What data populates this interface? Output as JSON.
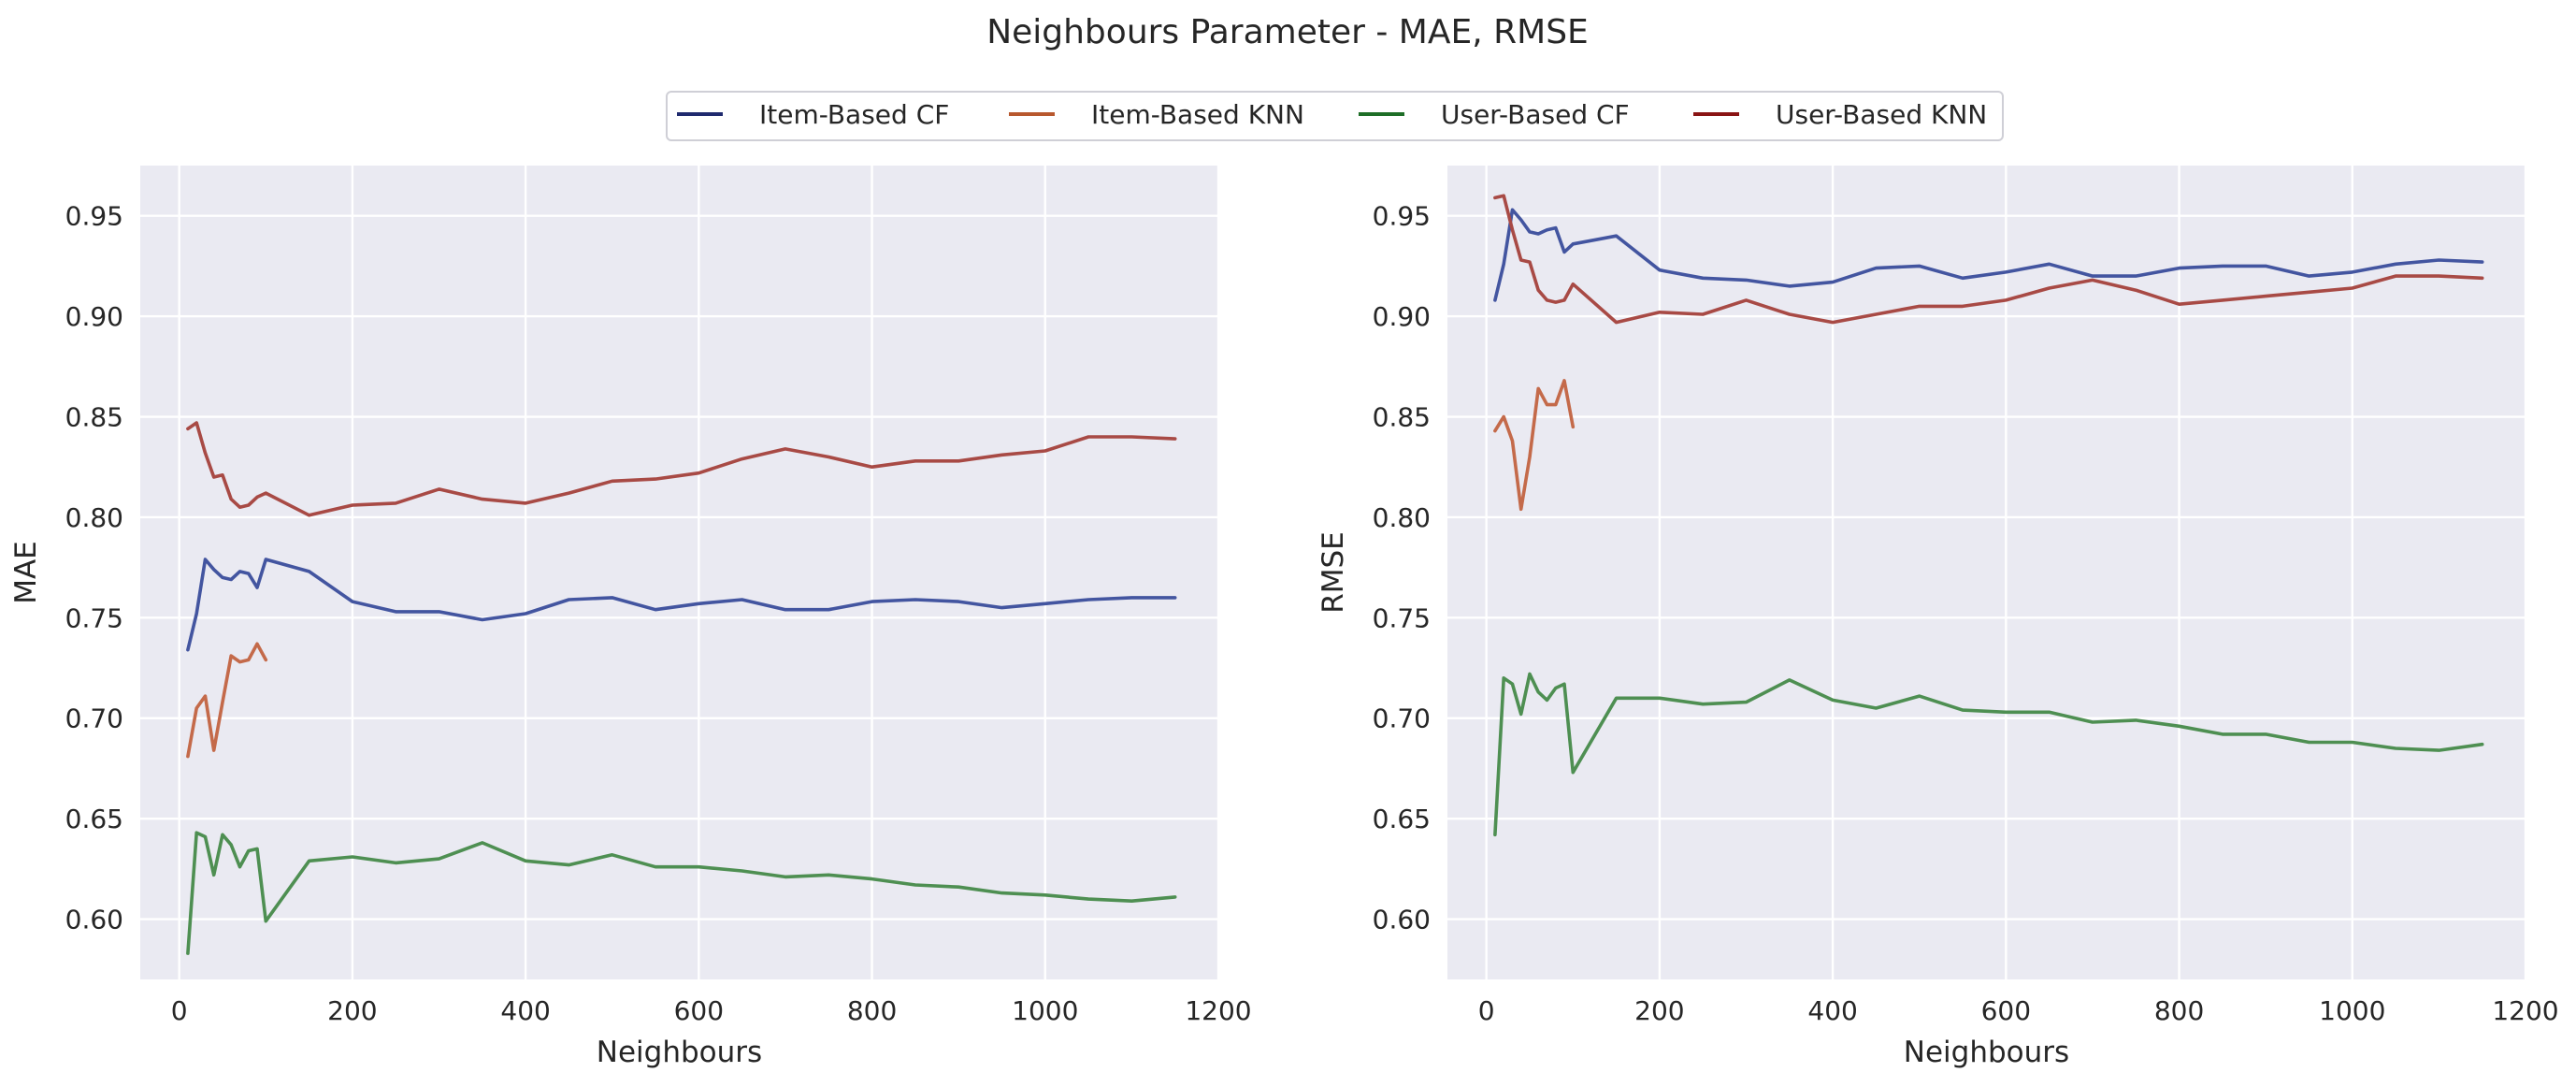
{
  "figure": {
    "title": "Neighbours Parameter - MAE, RMSE",
    "background": "#ffffff",
    "axes_background": "#eaeaf2",
    "grid_color": "#ffffff"
  },
  "legend": {
    "placement": "top-center",
    "entries": [
      {
        "name": "Item-Based CF",
        "color": "#1f2a6e"
      },
      {
        "name": "Item-Based KNN",
        "color": "#b8582e"
      },
      {
        "name": "User-Based CF",
        "color": "#1e6e27"
      },
      {
        "name": "User-Based KNN",
        "color": "#8a1414"
      }
    ]
  },
  "chart_data": [
    {
      "type": "line",
      "title": "",
      "xlabel": "Neighbours",
      "ylabel": "MAE",
      "xlim": [
        -45,
        1200
      ],
      "ylim": [
        0.57,
        0.975
      ],
      "xticks": [
        0,
        200,
        400,
        600,
        800,
        1000,
        1200
      ],
      "yticks": [
        0.6,
        0.65,
        0.7,
        0.75,
        0.8,
        0.85,
        0.9,
        0.95
      ],
      "ytick_labels": [
        "0.60",
        "0.65",
        "0.70",
        "0.75",
        "0.80",
        "0.85",
        "0.90",
        "0.95"
      ],
      "grid": true,
      "series": [
        {
          "name": "Item-Based CF",
          "color": "#4355a0",
          "x": [
            10,
            20,
            30,
            40,
            50,
            60,
            70,
            80,
            90,
            100,
            150,
            200,
            250,
            300,
            350,
            400,
            450,
            500,
            550,
            600,
            650,
            700,
            750,
            800,
            850,
            900,
            950,
            1000,
            1050,
            1100,
            1150
          ],
          "y": [
            0.734,
            0.752,
            0.779,
            0.774,
            0.77,
            0.769,
            0.773,
            0.772,
            0.765,
            0.779,
            0.773,
            0.758,
            0.753,
            0.753,
            0.749,
            0.752,
            0.759,
            0.76,
            0.754,
            0.757,
            0.759,
            0.754,
            0.754,
            0.758,
            0.759,
            0.758,
            0.755,
            0.757,
            0.759,
            0.76,
            0.76
          ]
        },
        {
          "name": "Item-Based KNN",
          "color": "#c46a4a",
          "x": [
            10,
            20,
            30,
            40,
            50,
            60,
            70,
            80,
            90,
            100
          ],
          "y": [
            0.681,
            0.705,
            0.711,
            0.684,
            0.708,
            0.731,
            0.728,
            0.729,
            0.737,
            0.729
          ]
        },
        {
          "name": "User-Based CF",
          "color": "#4e8f52",
          "x": [
            10,
            20,
            30,
            40,
            50,
            60,
            70,
            80,
            90,
            100,
            150,
            200,
            250,
            300,
            350,
            400,
            450,
            500,
            550,
            600,
            650,
            700,
            750,
            800,
            850,
            900,
            950,
            1000,
            1050,
            1100,
            1150
          ],
          "y": [
            0.583,
            0.643,
            0.641,
            0.622,
            0.642,
            0.637,
            0.626,
            0.634,
            0.635,
            0.599,
            0.629,
            0.631,
            0.628,
            0.63,
            0.638,
            0.629,
            0.627,
            0.632,
            0.626,
            0.626,
            0.624,
            0.621,
            0.622,
            0.62,
            0.617,
            0.616,
            0.613,
            0.612,
            0.61,
            0.609,
            0.611
          ]
        },
        {
          "name": "User-Based KNN",
          "color": "#a84a45",
          "x": [
            10,
            20,
            30,
            40,
            50,
            60,
            70,
            80,
            90,
            100,
            150,
            200,
            250,
            300,
            350,
            400,
            450,
            500,
            550,
            600,
            650,
            700,
            750,
            800,
            850,
            900,
            950,
            1000,
            1050,
            1100,
            1150
          ],
          "y": [
            0.844,
            0.847,
            0.832,
            0.82,
            0.821,
            0.809,
            0.805,
            0.806,
            0.81,
            0.812,
            0.801,
            0.806,
            0.807,
            0.814,
            0.809,
            0.807,
            0.812,
            0.818,
            0.819,
            0.822,
            0.829,
            0.834,
            0.83,
            0.825,
            0.828,
            0.828,
            0.831,
            0.833,
            0.84,
            0.84,
            0.839
          ]
        }
      ]
    },
    {
      "type": "line",
      "title": "",
      "xlabel": "Neighbours",
      "ylabel": "RMSE",
      "xlim": [
        -45,
        1200
      ],
      "ylim": [
        0.57,
        0.975
      ],
      "xticks": [
        0,
        200,
        400,
        600,
        800,
        1000,
        1200
      ],
      "yticks": [
        0.6,
        0.65,
        0.7,
        0.75,
        0.8,
        0.85,
        0.9,
        0.95
      ],
      "ytick_labels": [
        "0.60",
        "0.65",
        "0.70",
        "0.75",
        "0.80",
        "0.85",
        "0.90",
        "0.95"
      ],
      "grid": true,
      "series": [
        {
          "name": "Item-Based CF",
          "color": "#4355a0",
          "x": [
            10,
            20,
            30,
            40,
            50,
            60,
            70,
            80,
            90,
            100,
            150,
            200,
            250,
            300,
            350,
            400,
            450,
            500,
            550,
            600,
            650,
            700,
            750,
            800,
            850,
            900,
            950,
            1000,
            1050,
            1100,
            1150
          ],
          "y": [
            0.908,
            0.926,
            0.953,
            0.948,
            0.942,
            0.941,
            0.943,
            0.944,
            0.932,
            0.936,
            0.94,
            0.923,
            0.919,
            0.918,
            0.915,
            0.917,
            0.924,
            0.925,
            0.919,
            0.922,
            0.926,
            0.92,
            0.92,
            0.924,
            0.925,
            0.925,
            0.92,
            0.922,
            0.926,
            0.928,
            0.927
          ]
        },
        {
          "name": "Item-Based KNN",
          "color": "#c46a4a",
          "x": [
            10,
            20,
            30,
            40,
            50,
            60,
            70,
            80,
            90,
            100
          ],
          "y": [
            0.843,
            0.85,
            0.838,
            0.804,
            0.83,
            0.864,
            0.856,
            0.856,
            0.868,
            0.845
          ]
        },
        {
          "name": "User-Based CF",
          "color": "#4e8f52",
          "x": [
            10,
            20,
            30,
            40,
            50,
            60,
            70,
            80,
            90,
            100,
            150,
            200,
            250,
            300,
            350,
            400,
            450,
            500,
            550,
            600,
            650,
            700,
            750,
            800,
            850,
            900,
            950,
            1000,
            1050,
            1100,
            1150
          ],
          "y": [
            0.642,
            0.72,
            0.717,
            0.702,
            0.722,
            0.713,
            0.709,
            0.715,
            0.717,
            0.673,
            0.71,
            0.71,
            0.707,
            0.708,
            0.719,
            0.709,
            0.705,
            0.711,
            0.704,
            0.703,
            0.703,
            0.698,
            0.699,
            0.696,
            0.692,
            0.692,
            0.688,
            0.688,
            0.685,
            0.684,
            0.687
          ]
        },
        {
          "name": "User-Based KNN",
          "color": "#a84a45",
          "x": [
            10,
            20,
            30,
            40,
            50,
            60,
            70,
            80,
            90,
            100,
            150,
            200,
            250,
            300,
            350,
            400,
            450,
            500,
            550,
            600,
            650,
            700,
            750,
            800,
            850,
            900,
            950,
            1000,
            1050,
            1100,
            1150
          ],
          "y": [
            0.959,
            0.96,
            0.943,
            0.928,
            0.927,
            0.913,
            0.908,
            0.907,
            0.908,
            0.916,
            0.897,
            0.902,
            0.901,
            0.908,
            0.901,
            0.897,
            0.901,
            0.905,
            0.905,
            0.908,
            0.914,
            0.918,
            0.913,
            0.906,
            0.908,
            0.91,
            0.912,
            0.914,
            0.92,
            0.92,
            0.919
          ]
        }
      ]
    }
  ]
}
